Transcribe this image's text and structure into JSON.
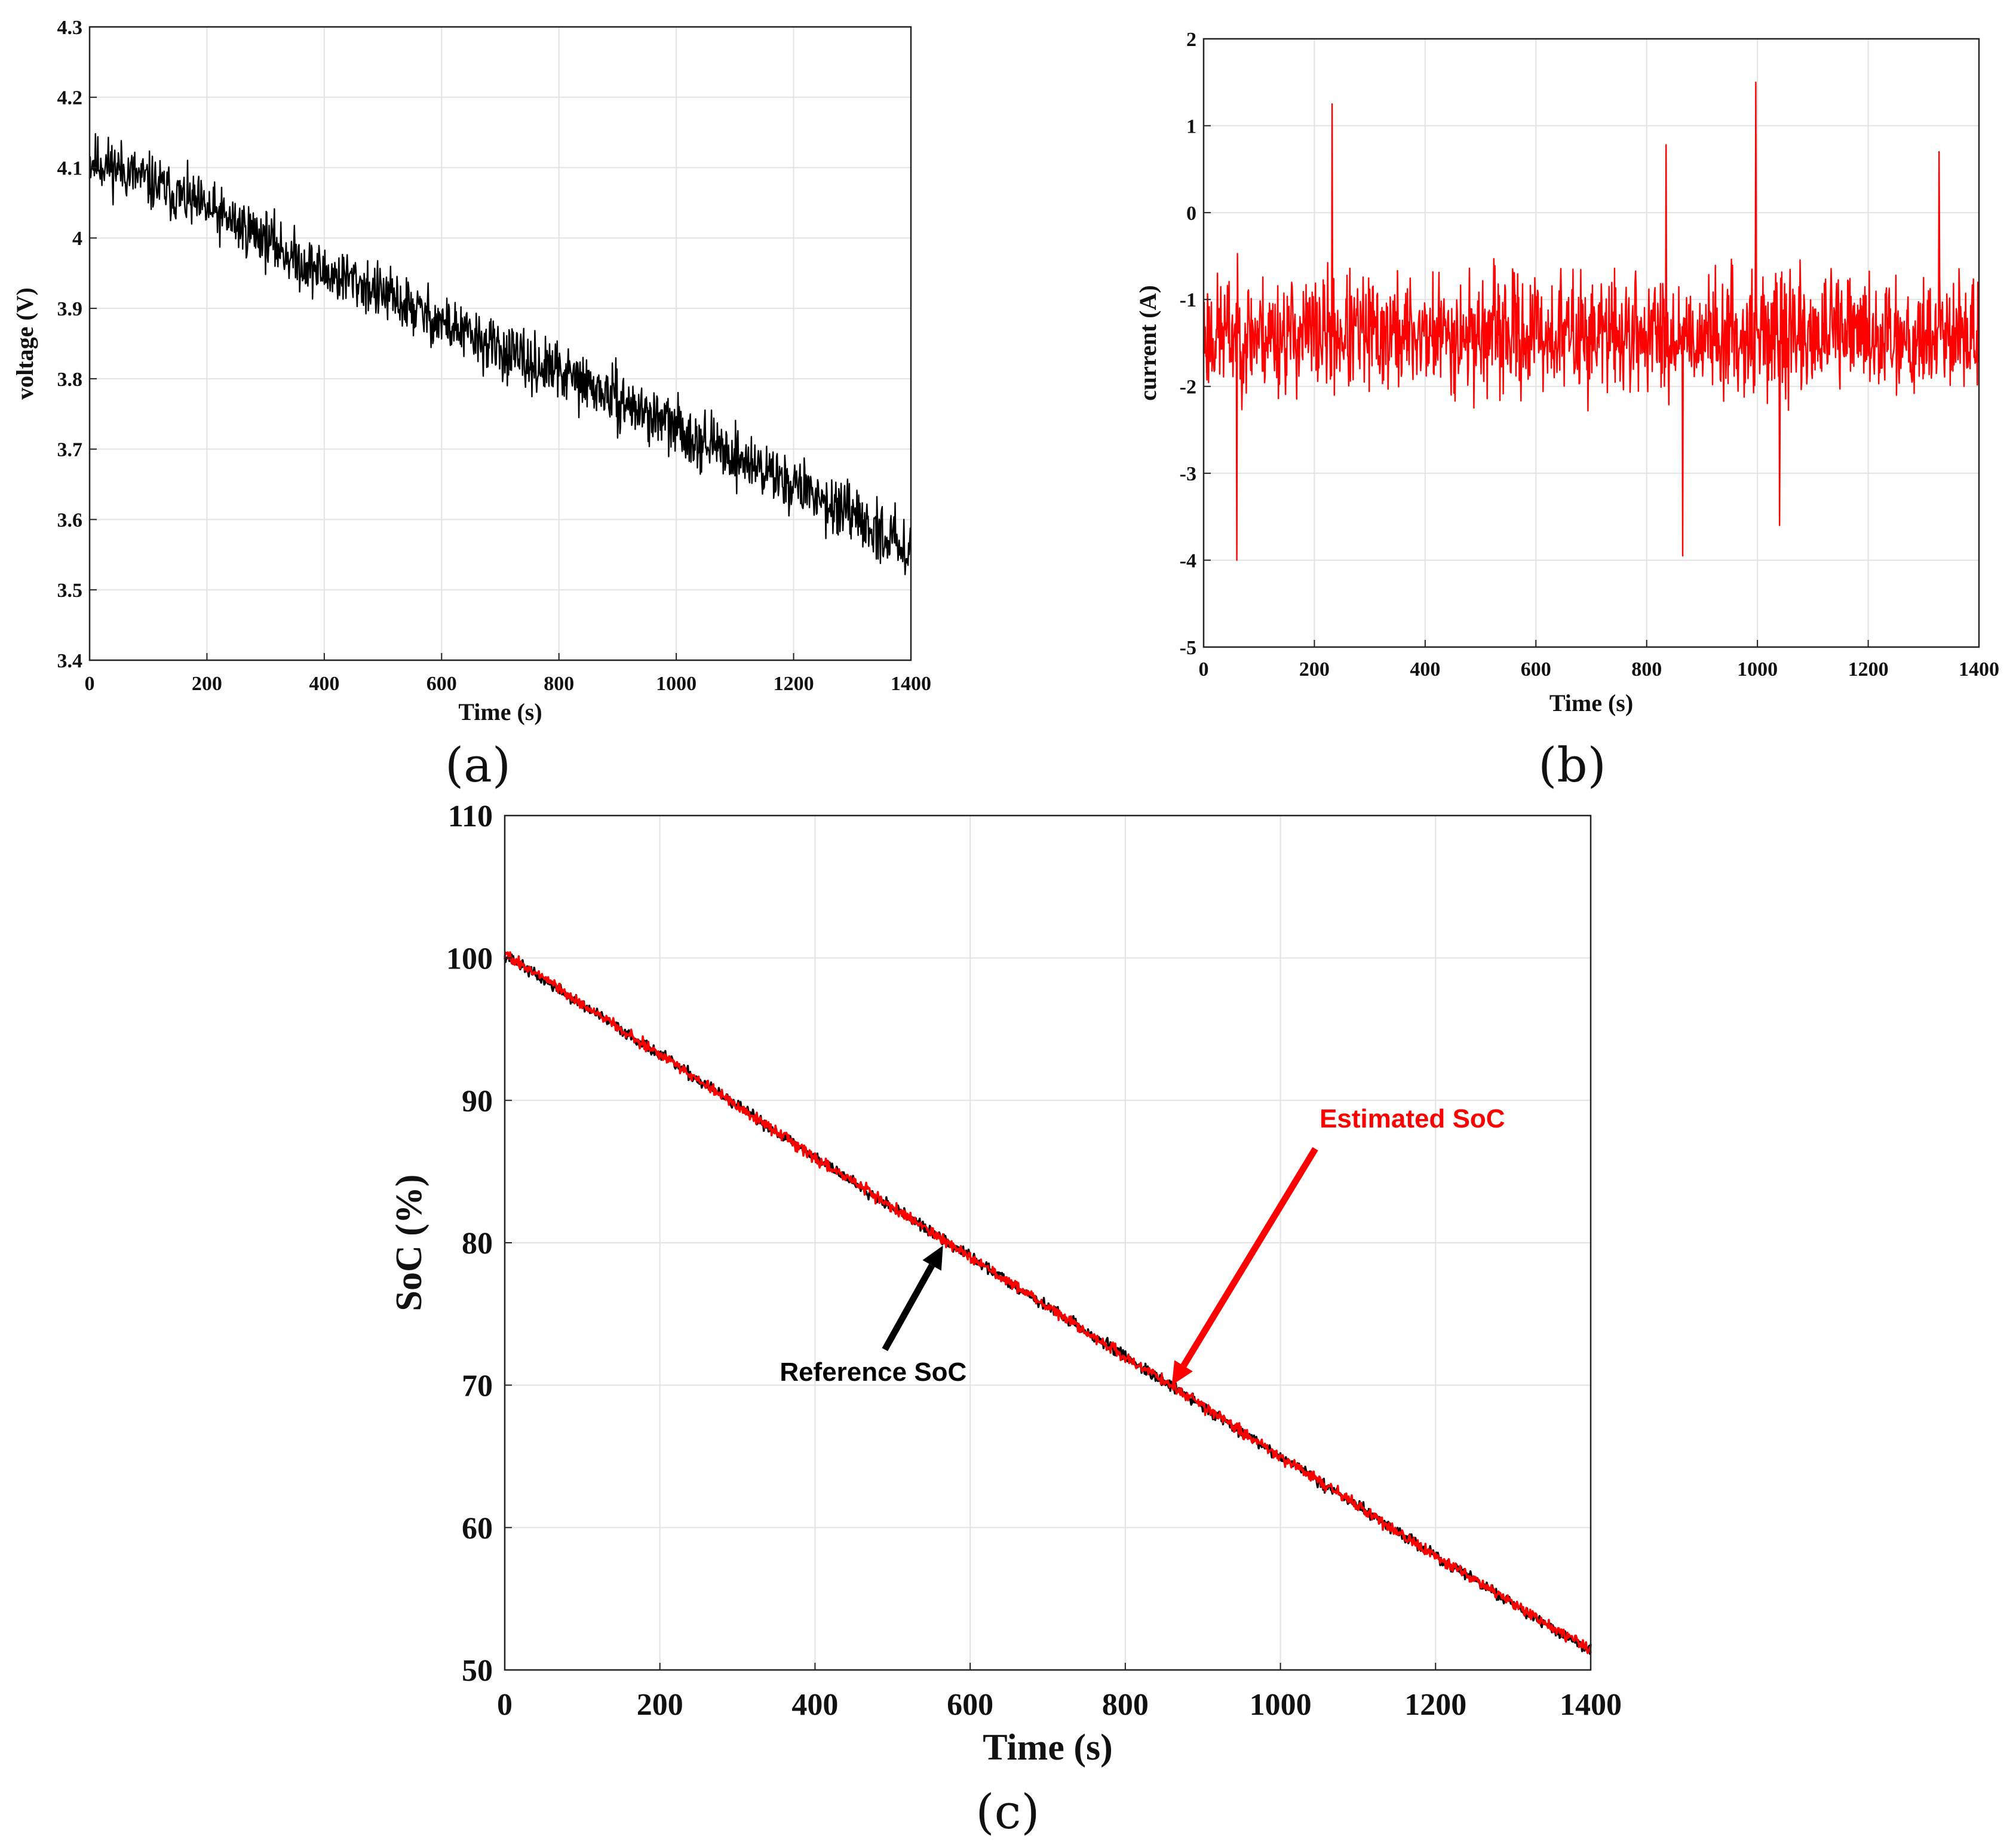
{
  "chart_data": [
    {
      "id": "a",
      "panel_label": "(a)",
      "type": "line",
      "xlabel": "Time (s)",
      "ylabel": "voltage (V)",
      "xlim": [
        0,
        1400
      ],
      "ylim": [
        3.4,
        4.3
      ],
      "xticks": [
        "0",
        "200",
        "400",
        "600",
        "800",
        "1000",
        "1200",
        "1400"
      ],
      "yticks": [
        "3.4",
        "3.5",
        "3.6",
        "3.7",
        "3.8",
        "3.9",
        "4",
        "4.1",
        "4.2",
        "4.3"
      ],
      "grid": true,
      "series": [
        {
          "color": "#000000",
          "x": [
            0,
            50,
            100,
            150,
            200,
            250,
            300,
            350,
            400,
            450,
            500,
            550,
            600,
            650,
            700,
            750,
            800,
            850,
            900,
            950,
            1000,
            1050,
            1100,
            1150,
            1200,
            1250,
            1300,
            1350,
            1400
          ],
          "values": [
            4.11,
            4.1,
            4.08,
            4.06,
            4.04,
            4.02,
            4.0,
            3.97,
            3.95,
            3.94,
            3.92,
            3.9,
            3.88,
            3.86,
            3.84,
            3.82,
            3.81,
            3.79,
            3.77,
            3.75,
            3.73,
            3.71,
            3.69,
            3.67,
            3.65,
            3.63,
            3.6,
            3.58,
            3.56
          ],
          "noise_amplitude": 0.06
        }
      ]
    },
    {
      "id": "b",
      "panel_label": "(b)",
      "type": "line",
      "xlabel": "Time (s)",
      "ylabel": "current (A)",
      "xlim": [
        0,
        1400
      ],
      "ylim": [
        -5,
        2
      ],
      "xticks": [
        "0",
        "200",
        "400",
        "600",
        "800",
        "1000",
        "1200",
        "1400"
      ],
      "yticks": [
        "-5",
        "-4",
        "-3",
        "-2",
        "-1",
        "0",
        "1",
        "2"
      ],
      "grid": true,
      "series": [
        {
          "color": "#ff0000",
          "x": [
            0,
            1400
          ],
          "values": [
            -1.4,
            -1.4
          ],
          "noise_amplitude": 1.0,
          "spikes": [
            {
              "x": 60,
              "y": -4.0
            },
            {
              "x": 232,
              "y": 1.25
            },
            {
              "x": 835,
              "y": 0.78
            },
            {
              "x": 865,
              "y": -3.95
            },
            {
              "x": 997,
              "y": 1.5
            },
            {
              "x": 1040,
              "y": -3.6
            },
            {
              "x": 1328,
              "y": 0.7
            }
          ]
        }
      ]
    },
    {
      "id": "c",
      "panel_label": "(c)",
      "type": "line",
      "xlabel": "Time (s)",
      "ylabel": "SoC (%)",
      "xlim": [
        0,
        1400
      ],
      "ylim": [
        50,
        110
      ],
      "xticks": [
        "0",
        "200",
        "400",
        "600",
        "800",
        "1000",
        "1200",
        "1400"
      ],
      "yticks": [
        "50",
        "60",
        "70",
        "80",
        "90",
        "100",
        "110"
      ],
      "grid": true,
      "series": [
        {
          "name": "Reference SoC",
          "color": "#000000",
          "x": [
            0,
            200,
            400,
            600,
            800,
            1000,
            1200,
            1400
          ],
          "values": [
            100.2,
            93.2,
            86.0,
            79.0,
            72.0,
            65.0,
            58.0,
            51.3
          ],
          "noise_amplitude": 0.6
        },
        {
          "name": "Estimated SoC",
          "color": "#ff0000",
          "x": [
            0,
            200,
            400,
            600,
            800,
            1000,
            1200,
            1400
          ],
          "values": [
            100.3,
            93.2,
            86.0,
            79.0,
            72.0,
            65.0,
            58.0,
            51.4
          ],
          "noise_amplitude": 0.6
        }
      ],
      "annotations": [
        {
          "text": "Reference SoC",
          "color": "#000000",
          "text_x": 475,
          "text_y": 70.3,
          "arrow_from": [
            490,
            72.5
          ],
          "arrow_to": [
            565,
            79.8
          ]
        },
        {
          "text": "Estimated SoC",
          "color": "#ff0000",
          "text_x": 1170,
          "text_y": 88.1,
          "arrow_from": [
            1045,
            86.6
          ],
          "arrow_to": [
            860,
            70.0
          ]
        }
      ]
    }
  ]
}
